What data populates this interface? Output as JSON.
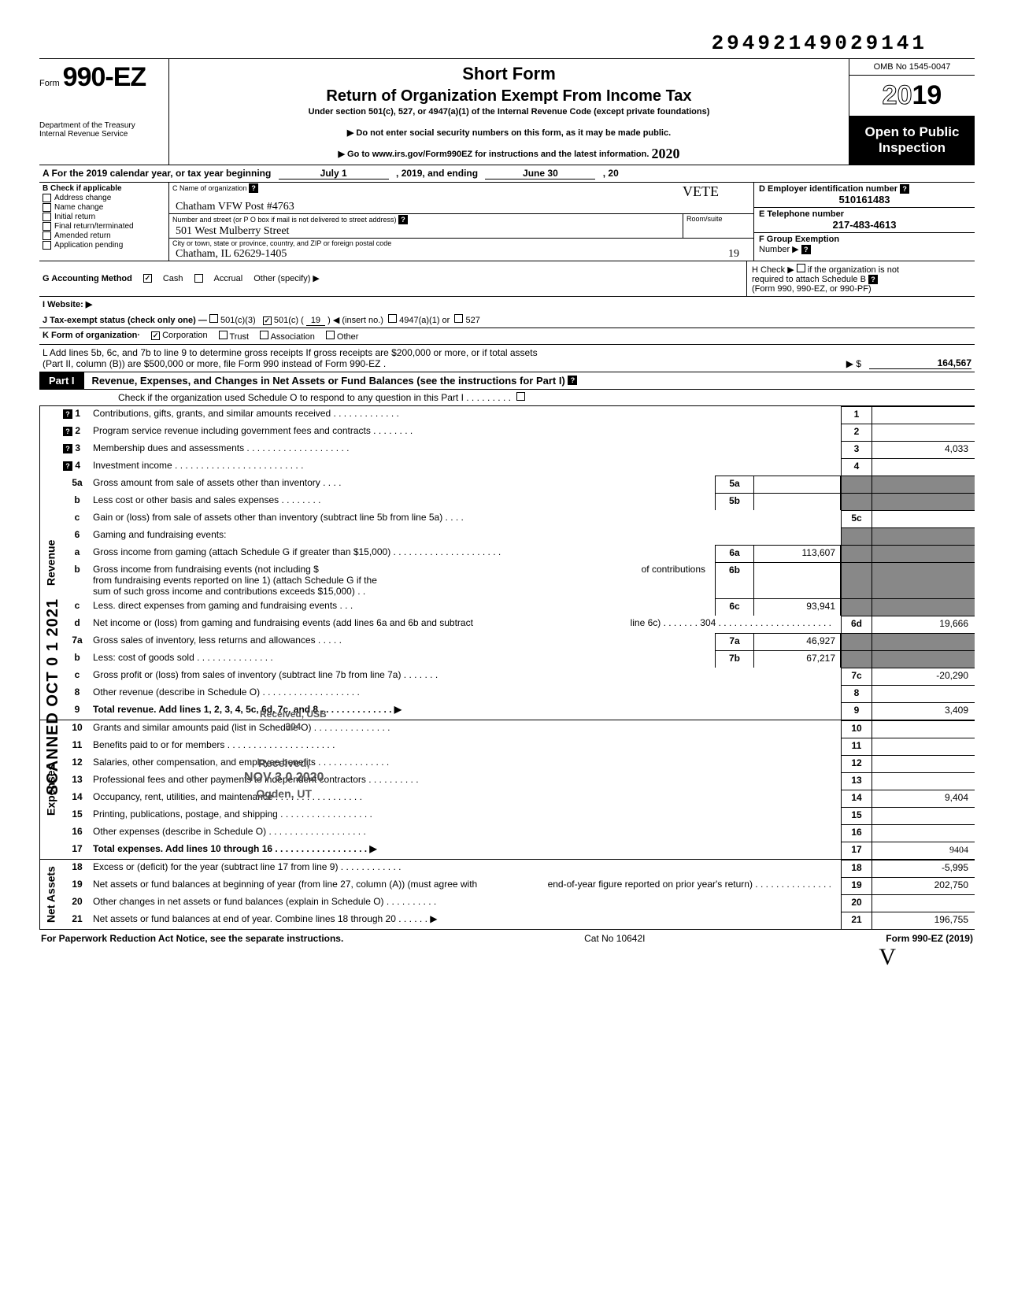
{
  "doc_id": "29492149029141",
  "header": {
    "form_word": "Form",
    "form_num": "990-EZ",
    "short_form": "Short Form",
    "title": "Return of Organization Exempt From Income Tax",
    "subtitle": "Under section 501(c), 527, or 4947(a)(1) of the Internal Revenue Code (except private foundations)",
    "notice": "▶ Do not enter social security numbers on this form, as it may be made public.",
    "goto": "▶ Go to www.irs.gov/Form990EZ for instructions and the latest information.",
    "hand_year": "2020",
    "dept1": "Department of the Treasury",
    "dept2": "Internal Revenue Service",
    "omb": "OMB No 1545-0047",
    "year_outline": "20",
    "year_bold": "19",
    "open1": "Open to Public",
    "open2": "Inspection"
  },
  "rowA": {
    "prefix": "A For the 2019 calendar year, or tax year beginning",
    "begin": "July 1",
    "mid": ", 2019, and ending",
    "end": "June 30",
    "suffix": ", 20"
  },
  "colB": {
    "title": "B Check if applicable",
    "items": [
      "Address change",
      "Name change",
      "Initial return",
      "Final return/terminated",
      "Amended return",
      "Application pending"
    ]
  },
  "colC": {
    "name_lbl": "C Name of organization",
    "name_val": "Chatham VFW Post #4763",
    "vete": "VETE",
    "addr_lbl": "Number and street (or P O  box if mail is not delivered to street address)",
    "room_lbl": "Room/suite",
    "addr_val": "501 West Mulberry Street",
    "city_lbl": "City or town, state or province, country, and ZIP or foreign postal code",
    "city_val": "Chatham, IL 62629-1405",
    "city_hand": "19"
  },
  "colD": {
    "ein_lbl": "D Employer identification number",
    "ein_val": "510161483",
    "tel_lbl": "E Telephone number",
    "tel_val": "217-483-4613",
    "grp_lbl": "F Group Exemption",
    "grp_lbl2": "Number ▶"
  },
  "lineG": {
    "label": "G Accounting Method",
    "cash": "Cash",
    "accrual": "Accrual",
    "other": "Other (specify) ▶",
    "h_text1": "H Check ▶",
    "h_text2": "if the organization is not",
    "h_text3": "required to attach Schedule B",
    "h_text4": "(Form 990, 990-EZ, or 990-PF)"
  },
  "lineI": {
    "label": "I  Website: ▶"
  },
  "lineJ": {
    "label": "J Tax-exempt status (check only one) —",
    "c3": "501(c)(3)",
    "c_open": "501(c) (",
    "c_num": "19",
    "c_close": ") ◀ (insert no.)",
    "a1": "4947(a)(1) or",
    "s527": "527"
  },
  "lineK": {
    "label": "K Form of organization·",
    "corp": "Corporation",
    "trust": "Trust",
    "assoc": "Association",
    "other": "Other"
  },
  "lineL": {
    "text1": "L Add lines 5b, 6c, and 7b to line 9 to determine gross receipts  If gross receipts are $200,000 or more, or if total assets",
    "text2": "(Part II, column (B)) are $500,000 or more, file Form 990 instead of Form 990-EZ .",
    "arrow": "▶  $",
    "amount": "164,567"
  },
  "partI": {
    "tag": "Part I",
    "title": "Revenue, Expenses, and Changes in Net Assets or Fund Balances (see the instructions for Part I)",
    "check": "Check if the organization used Schedule O to respond to any question in this Part I  .   .   .   .   .   .   .   .   ."
  },
  "sections": {
    "revenue": "Revenue",
    "expenses": "Expenses",
    "netassets": "Net Assets"
  },
  "lines": {
    "l1": {
      "n": "1",
      "d": "Contributions, gifts, grants, and similar amounts received .   .   .   .   .   .   .   .   .   .   .   .   .",
      "box": "1",
      "v": ""
    },
    "l2": {
      "n": "2",
      "d": "Program service revenue including government fees and contracts     .    .    .    .    .    .    .    .",
      "box": "2",
      "v": ""
    },
    "l3": {
      "n": "3",
      "d": "Membership dues and assessments .   .   .   .   .   .   .   .   .   .   .   .   .   .   .   .   .   .   .   .",
      "box": "3",
      "v": "4,033"
    },
    "l4": {
      "n": "4",
      "d": "Investment income    .   .   .   .   .   .   .   .   .   .   .   .   .   .   .   .   .   .   .   .   .   .   .   .   .",
      "box": "4",
      "v": ""
    },
    "l5a": {
      "n": "5a",
      "d": "Gross amount from sale of assets other than inventory    .   .   .   .",
      "sub": "5a",
      "sv": ""
    },
    "l5b": {
      "n": "b",
      "d": "Less  cost or other basis and sales expenses .   .   .   .   .   .   .   .",
      "sub": "5b",
      "sv": ""
    },
    "l5c": {
      "n": "c",
      "d": "Gain or (loss) from sale of assets other than inventory (subtract line 5b from line 5a)  .   .   .   .",
      "box": "5c",
      "v": ""
    },
    "l6": {
      "n": "6",
      "d": "Gaming and fundraising events:"
    },
    "l6a": {
      "n": "a",
      "d": "Gross income from gaming (attach Schedule G if greater than $15,000) .   .   .   .   .   .   .   .   .   .   .   .   .   .   .   .   .   .   .   .   .",
      "sub": "6a",
      "sv": "113,607"
    },
    "l6b": {
      "n": "b",
      "d1": "Gross income from fundraising events (not including  $",
      "d2": "of contributions",
      "d3": "from fundraising events reported on line 1) (attach Schedule G if the",
      "d4": "sum of such gross income and contributions exceeds $15,000) .   .",
      "sub": "6b",
      "sv": ""
    },
    "l6c": {
      "n": "c",
      "d": "Less. direct expenses from gaming and fundraising events   .   .   .",
      "sub": "6c",
      "sv": "93,941"
    },
    "l6d": {
      "n": "d",
      "d1": "Net income or (loss) from gaming and fundraising events (add lines 6a and 6b and subtract",
      "d2": "line 6c)    .   .   .   .   .   .   .    304  .   .   .   .   .   .   .   .   .   .   .   .   .   .   .   .   .   .   .   .   .   .",
      "box": "6d",
      "v": "19,666"
    },
    "l7a": {
      "n": "7a",
      "d": "Gross sales of inventory, less returns and allowances .   .   .   .   .",
      "sub": "7a",
      "sv": "46,927"
    },
    "l7b": {
      "n": "b",
      "d": "Less: cost of goods sold   .   .   .   .   .   .   .   .   .   .   .   .   .   .   .",
      "sub": "7b",
      "sv": "67,217"
    },
    "l7c": {
      "n": "c",
      "d": "Gross profit or (loss) from sales of inventory (subtract line 7b from line 7a)    .   .   .   .   .   .   .",
      "box": "7c",
      "v": "-20,290"
    },
    "l8": {
      "n": "8",
      "d": "Other revenue (describe in Schedule O)   .   .   .   .   .   .   .   .   .   .   .   .   .   .   .   .   .   .   .",
      "box": "8",
      "v": ""
    },
    "l9": {
      "n": "9",
      "d": "Total revenue. Add lines 1, 2, 3, 4, 5c, 6d, 7c, and 8   .   .   .   .   .   .   .   .   .   .   .   .   .   .  ▶",
      "box": "9",
      "v": "3,409",
      "bold": true
    },
    "l10": {
      "n": "10",
      "d": "Grants and similar amounts paid (list in Schedule O)    .   .   .   .   .   .   .   .   .   .   .   .   .   .   .",
      "box": "10",
      "v": ""
    },
    "l11": {
      "n": "11",
      "d": "Benefits paid to or for members    .   .   .   .   .   .   .   .   .   .   .   .   .   .   .   .   .   .   .   .   .",
      "box": "11",
      "v": ""
    },
    "l12": {
      "n": "12",
      "d": "Salaries, other compensation, and employee benefits    .   .   .   .   .   .   .   .   .   .   .   .   .   .",
      "box": "12",
      "v": ""
    },
    "l13": {
      "n": "13",
      "d": "Professional fees and other payments to independent contractors   .   .   .   .   .   .   .   .   .   .",
      "box": "13",
      "v": ""
    },
    "l14": {
      "n": "14",
      "d": "Occupancy, rent, utilities, and maintenance    .   .   .   .   .   .   .   .   .   .   .   .   .   .   .   .   .",
      "box": "14",
      "v": "9,404"
    },
    "l15": {
      "n": "15",
      "d": "Printing, publications, postage, and shipping .   .   .   .   .   .   .   .   .   .   .   .   .   .   .   .   .   .",
      "box": "15",
      "v": ""
    },
    "l16": {
      "n": "16",
      "d": "Other expenses (describe in Schedule O)   .   .   .   .   .   .   .   .   .   .   .   .   .   .   .   .   .   .   .",
      "box": "16",
      "v": ""
    },
    "l17": {
      "n": "17",
      "d": "Total expenses. Add lines 10 through 16  .   .   .   .   .   .   .   .   .   .   .   .   .   .   .   .   .   .  ▶",
      "box": "17",
      "v": "9404",
      "bold": true,
      "hand": true
    },
    "l18": {
      "n": "18",
      "d": "Excess or (deficit) for the year (subtract line 17 from line 9)    .   .   .   .   .   .   .   .   .   .   .   .",
      "box": "18",
      "v": "-5,995"
    },
    "l19": {
      "n": "19",
      "d1": "Net assets or fund balances at beginning of year (from line 27, column (A)) (must agree with",
      "d2": "end-of-year figure reported on prior year's return)    .   .   .   .   .   .   .   .   .   .   .   .   .   .   .",
      "box": "19",
      "v": "202,750"
    },
    "l20": {
      "n": "20",
      "d": "Other changes in net assets or fund balances (explain in Schedule O) .   .   .   .   .   .   .   .   .   .",
      "box": "20",
      "v": ""
    },
    "l21": {
      "n": "21",
      "d": "Net assets or fund balances at end of year. Combine lines 18 through 20    .   .   .   .   .   .  ▶",
      "box": "21",
      "v": "196,755"
    }
  },
  "stamps": {
    "s1a": "Received, USB",
    "s1b": "304",
    "s2a": "Received,",
    "s2b": "NOV 3 0 2020",
    "s2c": "Ogden, UT"
  },
  "footer": {
    "left": "For Paperwork Reduction Act Notice, see the separate instructions.",
    "mid": "Cat  No 10642I",
    "right_a": "Form ",
    "right_b": "990-EZ",
    "right_c": " (2019)"
  },
  "scanned": "SCANNED OCT 0 1 2021",
  "sig": "V"
}
